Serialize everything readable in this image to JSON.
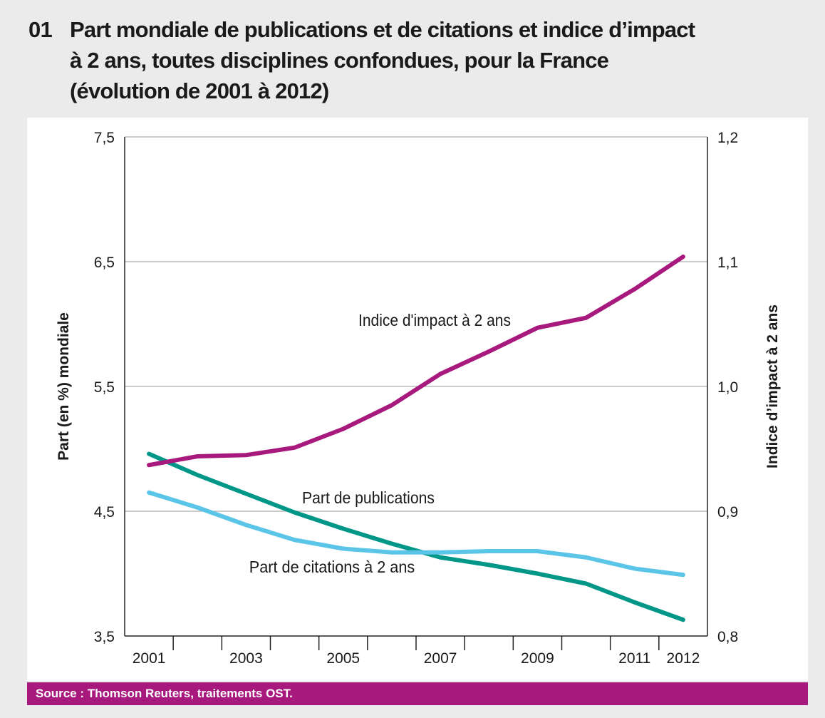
{
  "title": {
    "number": "01",
    "lines": [
      "Part mondiale de publications et de citations et indice d’impact",
      "à 2 ans, toutes disciplines confondues, pour la France",
      "(évolution de 2001 à 2012)"
    ]
  },
  "source": "Source : Thomson Reuters, traitements OST.",
  "colors": {
    "publications": "#009688",
    "citations": "#5bc5e8",
    "impact": "#a8197e",
    "source_bar": "#a8197e"
  },
  "chart_data": {
    "type": "line",
    "title": "Part mondiale de publications et de citations et indice d’impact à 2 ans, toutes disciplines confondues, pour la France (évolution de 2001 à 2012)",
    "x": [
      2001,
      2002,
      2003,
      2004,
      2005,
      2006,
      2007,
      2008,
      2009,
      2010,
      2011,
      2012
    ],
    "xtick_labels": [
      "2001",
      "2003",
      "2005",
      "2007",
      "2009",
      "2011",
      "2012"
    ],
    "ylabel": "Part (en %) mondiale",
    "ylabel_right": "Indice d’impact à 2 ans",
    "ylim": [
      3.5,
      7.5
    ],
    "ylim_right": [
      0.8,
      1.2
    ],
    "yticks": [
      "3,5",
      "4,5",
      "5,5",
      "6,5",
      "7,5"
    ],
    "yticks_right": [
      "0,8",
      "0,9",
      "1,0",
      "1,1",
      "1,2"
    ],
    "grid": true,
    "series": [
      {
        "name": "Part de publications",
        "axis": "left",
        "values": [
          4.96,
          4.79,
          4.64,
          4.49,
          4.36,
          4.24,
          4.13,
          4.07,
          4.0,
          3.92,
          3.77,
          3.63
        ]
      },
      {
        "name": "Part de citations à 2 ans",
        "axis": "left",
        "values": [
          4.65,
          4.53,
          4.39,
          4.27,
          4.2,
          4.17,
          4.17,
          4.18,
          4.18,
          4.13,
          4.04,
          3.99
        ]
      },
      {
        "name": "Indice d'impact à 2 ans",
        "axis": "right",
        "values": [
          0.937,
          0.944,
          0.945,
          0.951,
          0.966,
          0.985,
          1.01,
          1.028,
          1.047,
          1.055,
          1.078,
          1.104
        ]
      }
    ]
  }
}
